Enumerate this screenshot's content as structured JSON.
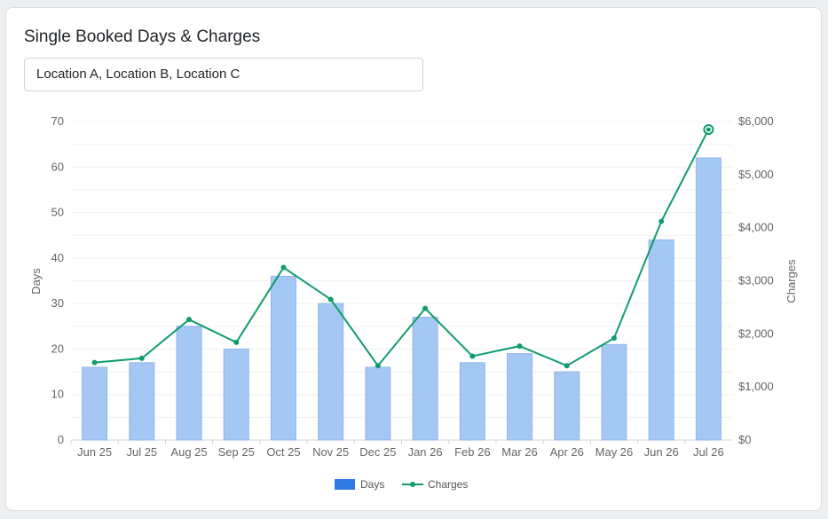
{
  "card": {
    "title": "Single Booked Days & Charges",
    "location_filter": "Location A, Location B, Location C"
  },
  "chart_data": {
    "type": "bar",
    "categories": [
      "Jun 25",
      "Jul 25",
      "Aug 25",
      "Sep 25",
      "Oct 25",
      "Nov 25",
      "Dec 25",
      "Jan 26",
      "Feb 26",
      "Mar 26",
      "Apr 26",
      "May 26",
      "Jun 26",
      "Jul 26"
    ],
    "series": [
      {
        "name": "Days",
        "type": "bar",
        "axis": "left",
        "color": "#a5c7f3",
        "values": [
          16,
          17,
          25,
          20,
          36,
          30,
          16,
          27,
          17,
          19,
          15,
          21,
          44,
          62
        ]
      },
      {
        "name": "Charges",
        "type": "line",
        "axis": "right",
        "color": "#0f9d6b",
        "values": [
          1460,
          1540,
          2270,
          1840,
          3250,
          2650,
          1400,
          2480,
          1580,
          1770,
          1400,
          1920,
          4120,
          5850
        ]
      }
    ],
    "ylabel": "Days",
    "ylabel_right": "Charges",
    "ylim": [
      0,
      70
    ],
    "yticks": [
      "0",
      "10",
      "20",
      "30",
      "40",
      "50",
      "60",
      "70"
    ],
    "ylim_right": [
      0,
      6000
    ],
    "yticks_right": [
      "$0",
      "$1,000",
      "$2,000",
      "$3,000",
      "$4,000",
      "$5,000",
      "$6,000"
    ],
    "legend": {
      "position": "bottom",
      "items": [
        "Days",
        "Charges"
      ]
    },
    "legend_swatch_color": "#2f7be3",
    "grid": true
  }
}
